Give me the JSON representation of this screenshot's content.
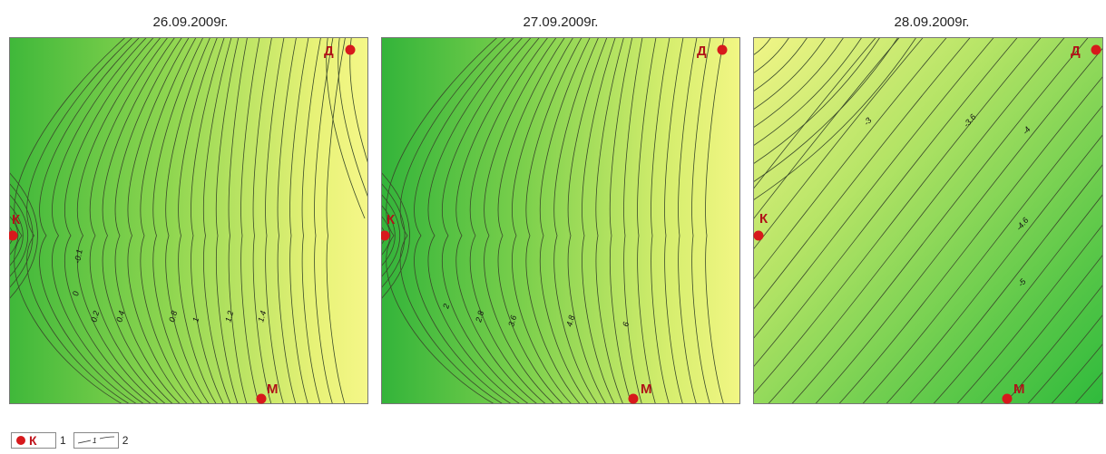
{
  "panels": [
    {
      "date": "26.09.2009г.",
      "gradient": [
        "#3fb83a",
        "#8fd650",
        "#e7f277",
        "#f5f788"
      ],
      "labels": [
        "-0.1",
        "0",
        "0.2",
        "0.4",
        "0.8",
        "1",
        "1.2",
        "1.4"
      ]
    },
    {
      "date": "27.09.2009г.",
      "gradient": [
        "#33b43a",
        "#7cd04c",
        "#d6ee6e",
        "#f2f684"
      ],
      "labels": [
        "2",
        "2.8",
        "3.6",
        "4.8",
        "6"
      ]
    },
    {
      "date": "28.09.2009г.",
      "gradient": [
        "#f1f587",
        "#b5e466",
        "#5fc94a",
        "#2fba3c"
      ],
      "labels": [
        "-3",
        "-3.6",
        "-4",
        "-4.6",
        "-5"
      ]
    }
  ],
  "stations": {
    "k": "К",
    "d": "Д",
    "m": "М"
  },
  "legend": {
    "marker_label": "К",
    "item1": "1",
    "isoline_label": "1",
    "item2": "2"
  },
  "colors": {
    "station": "#d7191c",
    "station_label": "#b01218",
    "isoline": "#3a4a2a"
  }
}
